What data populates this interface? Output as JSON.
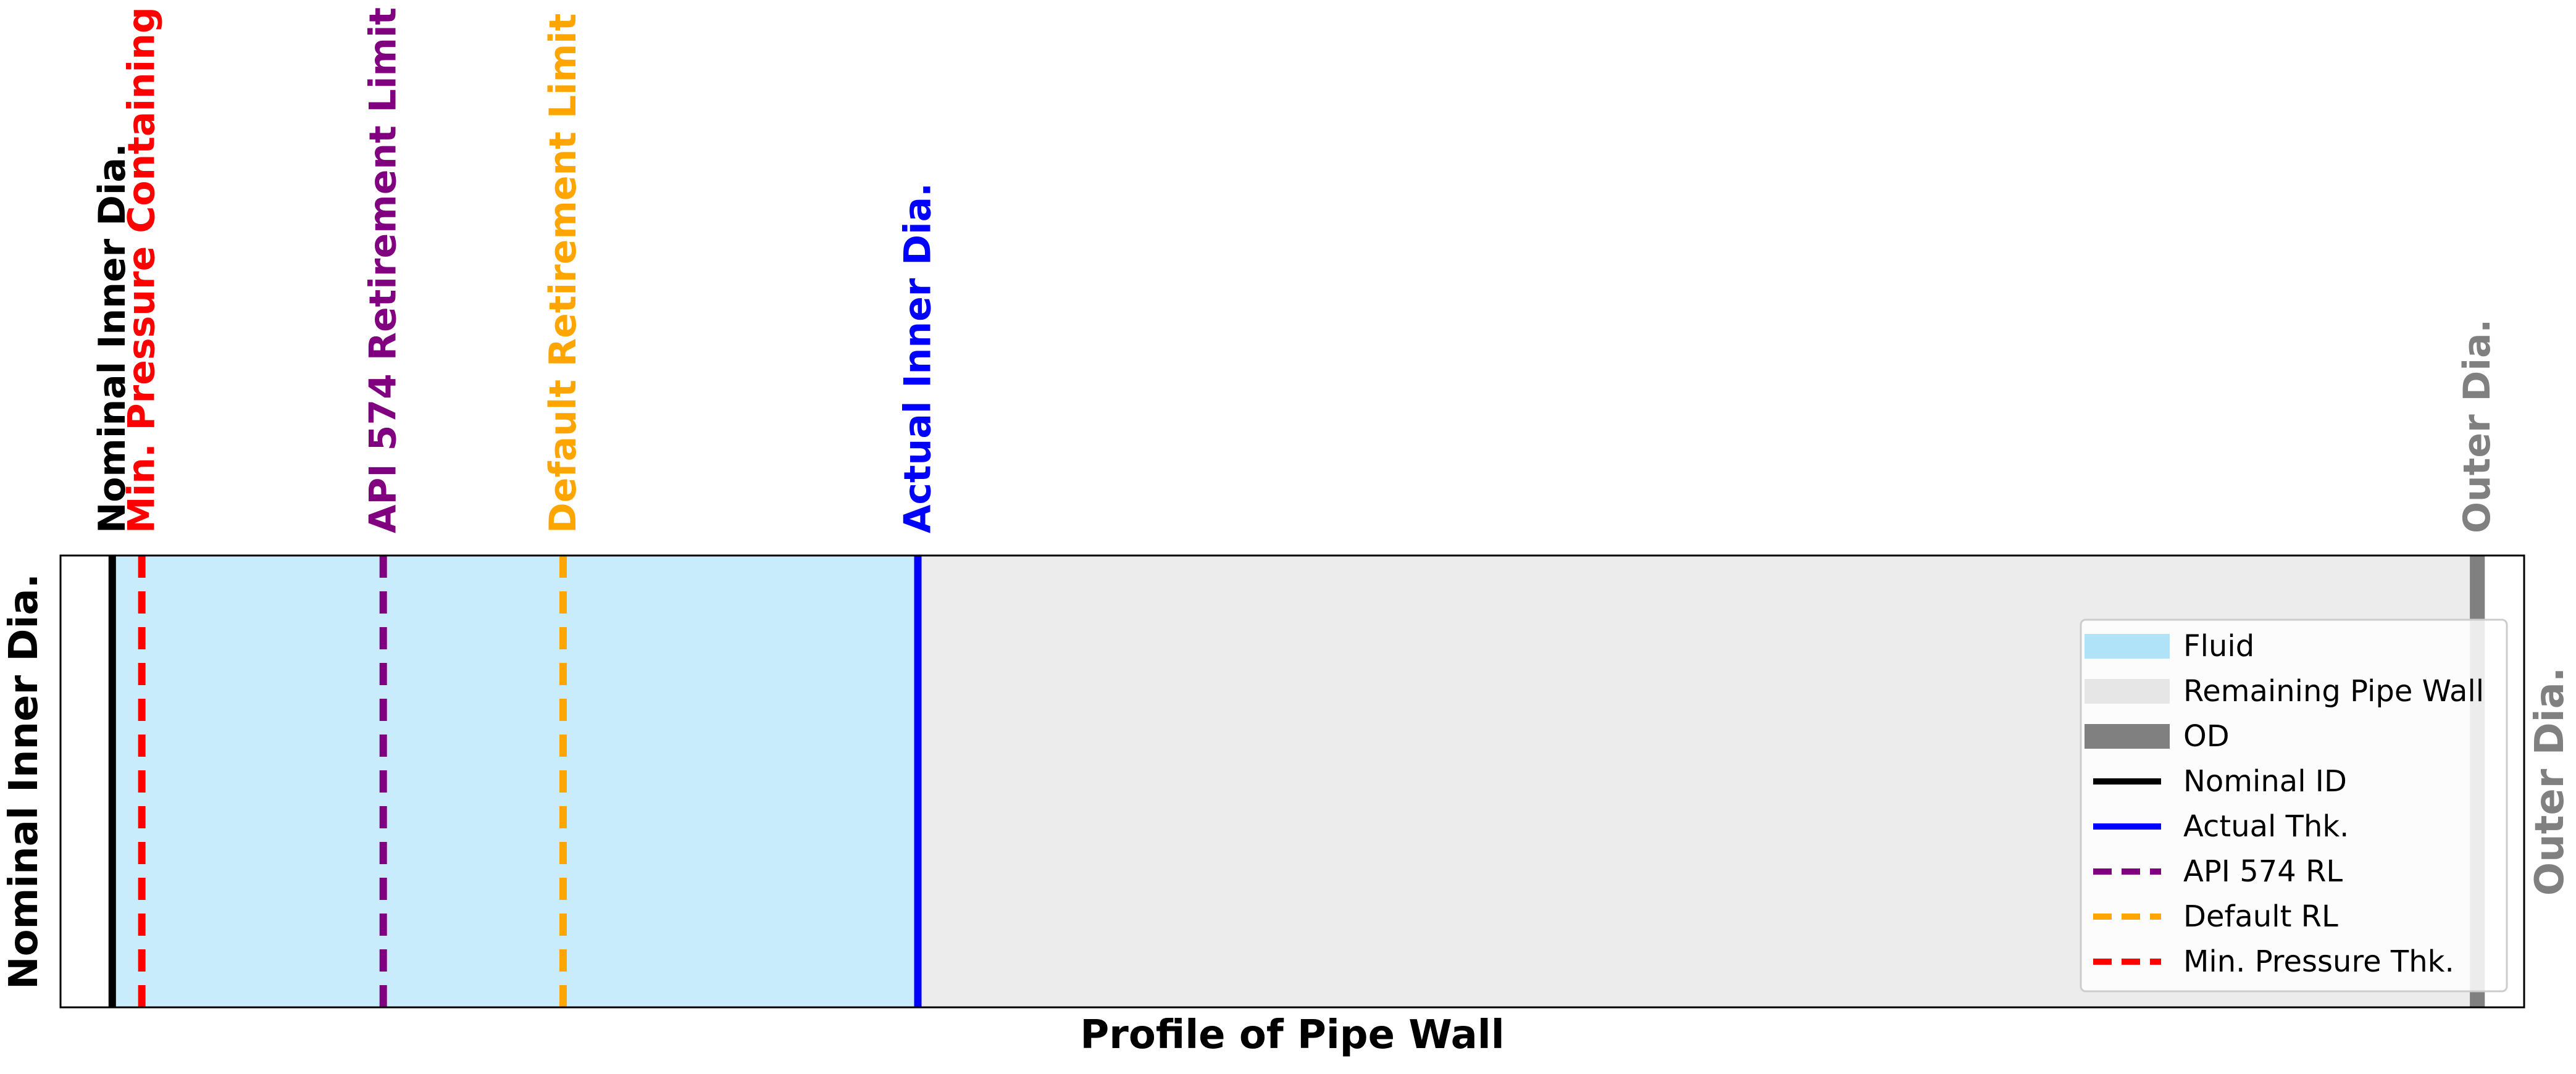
{
  "chart_data": {
    "type": "line",
    "title": "",
    "xlabel": "Profile of Pipe Wall",
    "ylabel_left": "Nominal Inner Dia.",
    "ylabel_right": "Outer Dia.",
    "xlim": [
      0,
      100
    ],
    "grid": false,
    "legend_position": "right",
    "regions": [
      {
        "name": "Fluid",
        "x_start": 2.1,
        "x_end": 34.8,
        "color": "#c8ecfc"
      },
      {
        "name": "Remaining Pipe Wall",
        "x_start": 34.8,
        "x_end": 97.8,
        "color": "#ececec"
      },
      {
        "name": "OD",
        "x_start": 97.8,
        "x_end": 98.4,
        "color": "#808080"
      }
    ],
    "markers": [
      {
        "label": "Nominal Inner Dia.",
        "legend": "Nominal ID",
        "x": 2.1,
        "color": "#000000",
        "style": "solid"
      },
      {
        "label": "Min. Pressure Containing",
        "legend": "Min. Pressure Thk.",
        "x": 3.3,
        "color": "#ff0000",
        "style": "dashed"
      },
      {
        "label": "API 574 Retirement Limit",
        "legend": "API 574 RL",
        "x": 13.1,
        "color": "#800080",
        "style": "dashed"
      },
      {
        "label": "Default Retirement Limit",
        "legend": "Default RL",
        "x": 20.4,
        "color": "#ffa500",
        "style": "dashed"
      },
      {
        "label": "Actual Inner Dia.",
        "legend": "Actual Thk.",
        "x": 34.8,
        "color": "#0000ff",
        "style": "solid"
      },
      {
        "label": "Outer Dia.",
        "legend": "OD",
        "x": 98.1,
        "color": "#808080",
        "style": "solid"
      }
    ],
    "legend": [
      {
        "label": "Fluid",
        "kind": "patch",
        "color": "#b0e2f8"
      },
      {
        "label": "Remaining Pipe Wall",
        "kind": "patch",
        "color": "#e6e6e6"
      },
      {
        "label": "OD",
        "kind": "patch",
        "color": "#808080"
      },
      {
        "label": "Nominal ID",
        "kind": "line",
        "color": "#000000",
        "style": "solid"
      },
      {
        "label": "Actual Thk.",
        "kind": "line",
        "color": "#0000ff",
        "style": "solid"
      },
      {
        "label": "API 574 RL",
        "kind": "line",
        "color": "#800080",
        "style": "dashed"
      },
      {
        "label": "Default RL",
        "kind": "line",
        "color": "#ffa500",
        "style": "dashed"
      },
      {
        "label": "Min. Pressure Thk.",
        "kind": "line",
        "color": "#ff0000",
        "style": "dashed"
      }
    ]
  }
}
